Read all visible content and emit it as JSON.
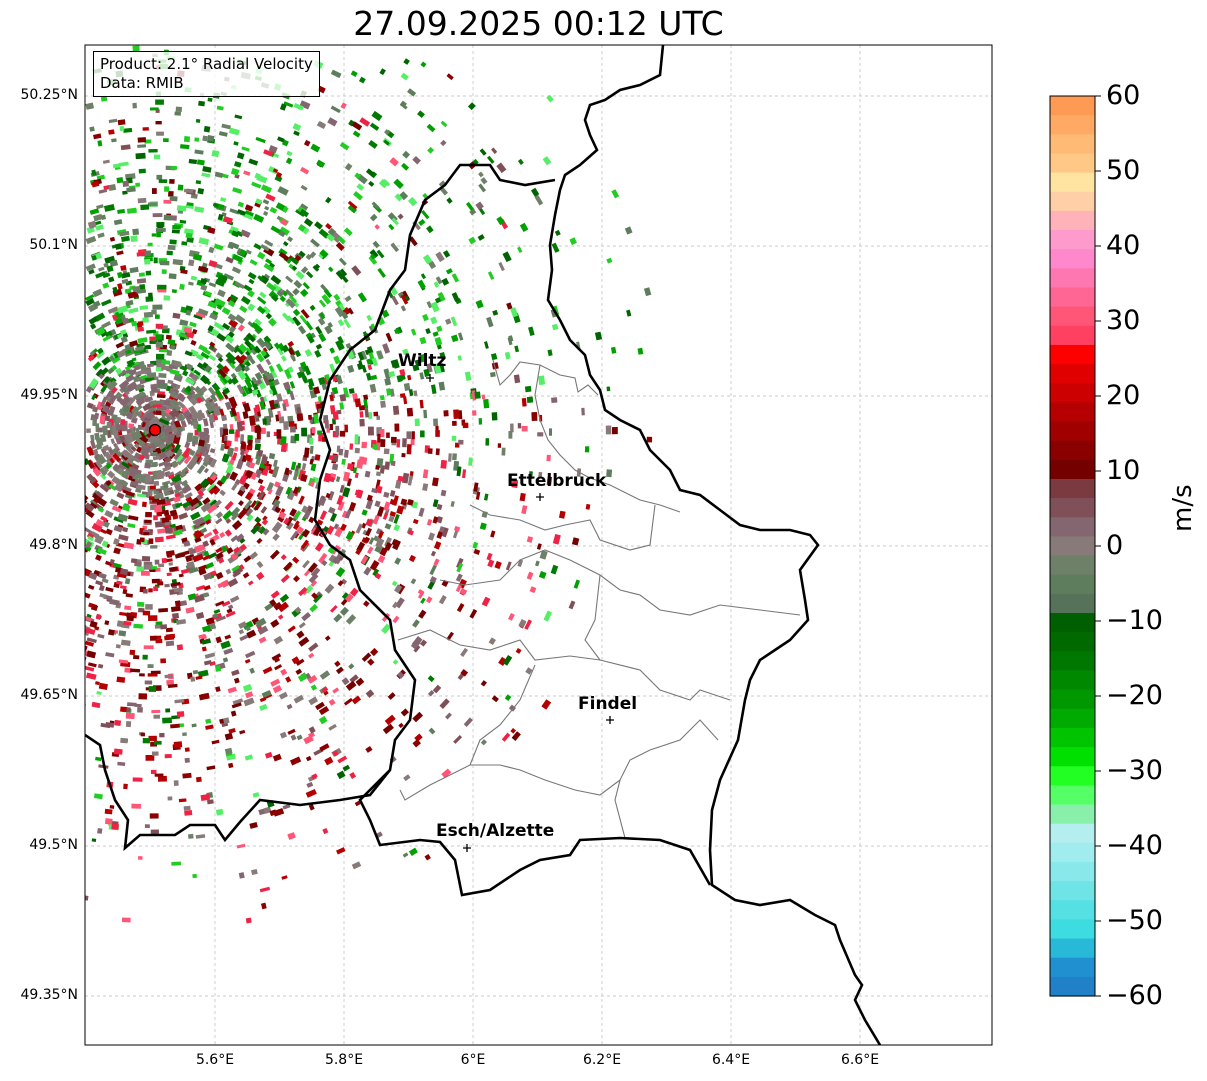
{
  "title": "27.09.2025 00:12 UTC",
  "info_box": {
    "product": "Product: 2.1° Radial Velocity",
    "data": "Data: RMIB"
  },
  "lat_ticks": [
    "50.25°N",
    "50.1°N",
    "49.95°N",
    "49.8°N",
    "49.65°N",
    "49.5°N",
    "49.35°N"
  ],
  "lon_ticks": [
    "5.6°E",
    "5.8°E",
    "6°E",
    "6.2°E",
    "6.4°E",
    "6.6°E"
  ],
  "cities": [
    {
      "name": "Wiltz"
    },
    {
      "name": "Ettelbruck"
    },
    {
      "name": "Findel"
    },
    {
      "name": "Esch/Alzette"
    }
  ],
  "colorbar": {
    "label": "m/s",
    "ticks": [
      "60",
      "50",
      "40",
      "30",
      "20",
      "10",
      "0",
      "−10",
      "−20",
      "−30",
      "−40",
      "−50",
      "−60"
    ],
    "range": [
      -60,
      60
    ],
    "colors_top_to_bottom": [
      "#ff9a55",
      "#ffa964",
      "#ffbb76",
      "#ffc884",
      "#ffe3a0",
      "#ffd0a8",
      "#ffb3b8",
      "#ff9acc",
      "#ff88cc",
      "#ff77b0",
      "#ff6694",
      "#ff5577",
      "#ff4060",
      "#ff0000",
      "#e00000",
      "#cc0000",
      "#b40000",
      "#a00000",
      "#8a0000",
      "#740000",
      "#7a3a40",
      "#7f5058",
      "#846670",
      "#887a78",
      "#6e8068",
      "#5e7d5c",
      "#56735a",
      "#005f00",
      "#006a00",
      "#007800",
      "#008800",
      "#009800",
      "#00aa00",
      "#00c400",
      "#00e000",
      "#22ff22",
      "#55ff66",
      "#88f0aa",
      "#b4eeee",
      "#a0ecee",
      "#88e8ea",
      "#6ee4e6",
      "#55e0e4",
      "#3cdce0",
      "#28b8d8",
      "#2090d0",
      "#2080c8"
    ]
  },
  "echo_palette": {
    "inbound": [
      "#006400",
      "#007a00",
      "#00a000",
      "#22cc22",
      "#55ee66",
      "#5e7d5c",
      "#6e8068"
    ],
    "outbound": [
      "#740000",
      "#8a0000",
      "#b40000",
      "#ee2244",
      "#ff5577",
      "#846670",
      "#7f5058",
      "#887a78"
    ]
  },
  "radar_site_color": "#ff0000"
}
